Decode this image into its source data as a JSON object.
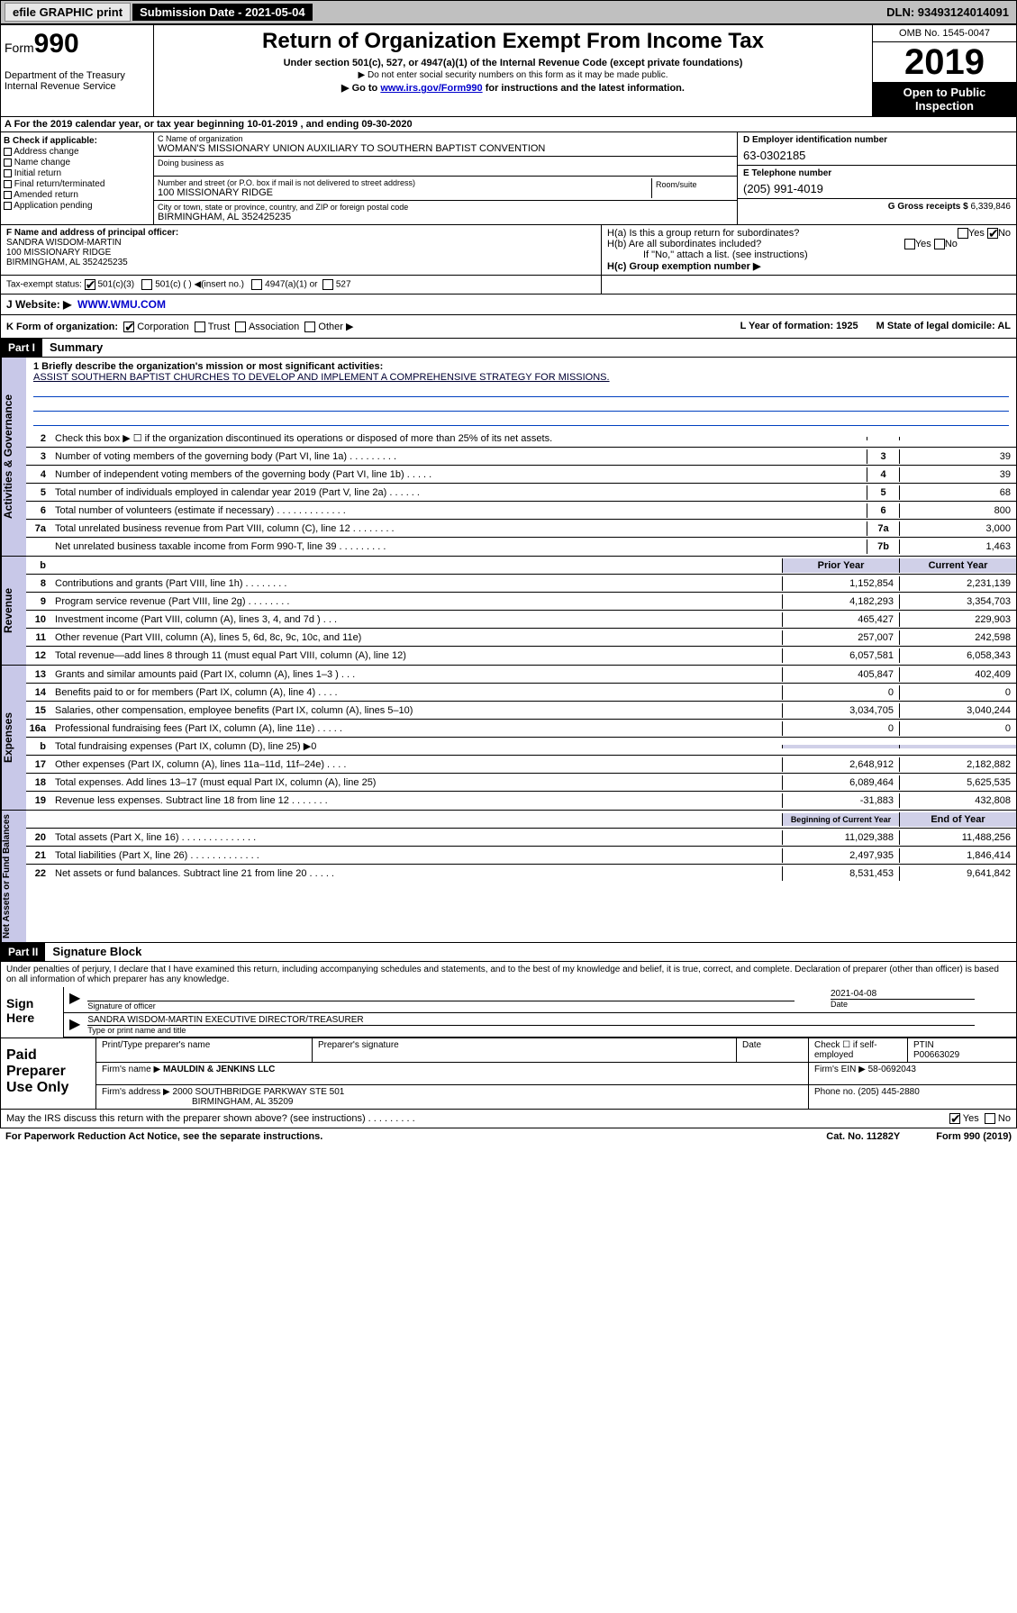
{
  "topbar": {
    "efile": "efile GRAPHIC print",
    "submission": "Submission Date - 2021-05-04",
    "dln": "DLN: 93493124014091"
  },
  "header": {
    "form": "Form",
    "formnum": "990",
    "dept": "Department of the Treasury Internal Revenue Service",
    "title": "Return of Organization Exempt From Income Tax",
    "sub1": "Under section 501(c), 527, or 4947(a)(1) of the Internal Revenue Code (except private foundations)",
    "sub2": "▶ Do not enter social security numbers on this form as it may be made public.",
    "sub3_pre": "▶ Go to ",
    "sub3_link": "www.irs.gov/Form990",
    "sub3_post": " for instructions and the latest information.",
    "omb": "OMB No. 1545-0047",
    "year": "2019",
    "open": "Open to Public Inspection"
  },
  "lineA": "A For the 2019 calendar year, or tax year beginning 10-01-2019     , and ending 09-30-2020",
  "checkboxes": {
    "hdr": "B Check if applicable:",
    "items": [
      "Address change",
      "Name change",
      "Initial return",
      "Final return/terminated",
      "Amended return",
      "Application pending"
    ]
  },
  "org": {
    "name_lbl": "C Name of organization",
    "name": "WOMAN'S MISSIONARY UNION AUXILIARY TO SOUTHERN BAPTIST CONVENTION",
    "dba_lbl": "Doing business as",
    "dba": "",
    "addr_lbl": "Number and street (or P.O. box if mail is not delivered to street address)",
    "addr": "100 MISSIONARY RIDGE",
    "room_lbl": "Room/suite",
    "city_lbl": "City or town, state or province, country, and ZIP or foreign postal code",
    "city": "BIRMINGHAM, AL  352425235"
  },
  "right": {
    "ein_lbl": "D Employer identification number",
    "ein": "63-0302185",
    "tel_lbl": "E Telephone number",
    "tel": "(205) 991-4019",
    "gross_lbl": "G Gross receipts $ ",
    "gross": "6,339,846"
  },
  "officer": {
    "lbl": "F Name and address of principal officer:",
    "name": "SANDRA WISDOM-MARTIN",
    "addr1": "100 MISSIONARY RIDGE",
    "addr2": "BIRMINGHAM, AL  352425235"
  },
  "h": {
    "ha": "H(a)  Is this a group return for subordinates?",
    "hb": "H(b)  Are all subordinates included?",
    "hb2": "If \"No,\" attach a list. (see instructions)",
    "hc": "H(c)  Group exemption number ▶"
  },
  "tax": {
    "lbl": "Tax-exempt status:",
    "c3": "501(c)(3)",
    "c": "501(c) (  ) ◀(insert no.)",
    "a1": "4947(a)(1) or",
    "s527": "527"
  },
  "website": {
    "lbl": "J Website: ▶",
    "val": "WWW.WMU.COM"
  },
  "rowk": {
    "k": "K Form of organization:",
    "corp": "Corporation",
    "trust": "Trust",
    "assoc": "Association",
    "other": "Other ▶",
    "l": "L Year of formation: 1925",
    "m": "M State of legal domicile: AL"
  },
  "part1": {
    "hdr": "Part I",
    "title": "Summary"
  },
  "mission": {
    "lbl": "1  Briefly describe the organization's mission or most significant activities:",
    "txt": "ASSIST SOUTHERN BAPTIST CHURCHES TO DEVELOP AND IMPLEMENT A COMPREHENSIVE STRATEGY FOR MISSIONS."
  },
  "gov_rows": [
    {
      "n": "2",
      "t": "Check this box ▶ ☐  if the organization discontinued its operations or disposed of more than 25% of its net assets.",
      "b": "",
      "v": ""
    },
    {
      "n": "3",
      "t": "Number of voting members of the governing body (Part VI, line 1a)  .    .    .    .    .    .    .    .    .",
      "b": "3",
      "v": "39"
    },
    {
      "n": "4",
      "t": "Number of independent voting members of the governing body (Part VI, line 1b)  .    .    .    .    .",
      "b": "4",
      "v": "39"
    },
    {
      "n": "5",
      "t": "Total number of individuals employed in calendar year 2019 (Part V, line 2a)  .    .    .    .    .    .",
      "b": "5",
      "v": "68"
    },
    {
      "n": "6",
      "t": "Total number of volunteers (estimate if necessary)  .    .    .    .    .    .    .    .    .    .    .    .    .",
      "b": "6",
      "v": "800"
    },
    {
      "n": "7a",
      "t": "Total unrelated business revenue from Part VIII, column (C), line 12  .    .    .    .    .    .    .    .",
      "b": "7a",
      "v": "3,000"
    },
    {
      "n": "",
      "t": "Net unrelated business taxable income from Form 990-T, line 39  .    .    .    .    .    .    .    .    .",
      "b": "7b",
      "v": "1,463"
    }
  ],
  "rev_hdr": {
    "p": "Prior Year",
    "c": "Current Year"
  },
  "rev_rows": [
    {
      "n": "8",
      "t": "Contributions and grants (Part VIII, line 1h)  .    .    .    .    .    .    .    .",
      "p": "1,152,854",
      "c": "2,231,139"
    },
    {
      "n": "9",
      "t": "Program service revenue (Part VIII, line 2g)  .    .    .    .    .    .    .    .",
      "p": "4,182,293",
      "c": "3,354,703"
    },
    {
      "n": "10",
      "t": "Investment income (Part VIII, column (A), lines 3, 4, and 7d )  .    .    .",
      "p": "465,427",
      "c": "229,903"
    },
    {
      "n": "11",
      "t": "Other revenue (Part VIII, column (A), lines 5, 6d, 8c, 9c, 10c, and 11e)",
      "p": "257,007",
      "c": "242,598"
    },
    {
      "n": "12",
      "t": "Total revenue—add lines 8 through 11 (must equal Part VIII, column (A), line 12)",
      "p": "6,057,581",
      "c": "6,058,343"
    }
  ],
  "exp_rows": [
    {
      "n": "13",
      "t": "Grants and similar amounts paid (Part IX, column (A), lines 1–3 )  .    .    .",
      "p": "405,847",
      "c": "402,409"
    },
    {
      "n": "14",
      "t": "Benefits paid to or for members (Part IX, column (A), line 4)  .    .    .    .",
      "p": "0",
      "c": "0"
    },
    {
      "n": "15",
      "t": "Salaries, other compensation, employee benefits (Part IX, column (A), lines 5–10)",
      "p": "3,034,705",
      "c": "3,040,244"
    },
    {
      "n": "16a",
      "t": "Professional fundraising fees (Part IX, column (A), line 11e)  .    .    .    .    .",
      "p": "0",
      "c": "0"
    },
    {
      "n": "b",
      "t": "Total fundraising expenses (Part IX, column (D), line 25) ▶0",
      "p": "",
      "c": "",
      "shade": true
    },
    {
      "n": "17",
      "t": "Other expenses (Part IX, column (A), lines 11a–11d, 11f–24e)  .    .    .    .",
      "p": "2,648,912",
      "c": "2,182,882"
    },
    {
      "n": "18",
      "t": "Total expenses. Add lines 13–17 (must equal Part IX, column (A), line 25)",
      "p": "6,089,464",
      "c": "5,625,535"
    },
    {
      "n": "19",
      "t": "Revenue less expenses. Subtract line 18 from line 12  .    .    .    .    .    .    .",
      "p": "-31,883",
      "c": "432,808"
    }
  ],
  "net_hdr": {
    "p": "Beginning of Current Year",
    "c": "End of Year"
  },
  "net_rows": [
    {
      "n": "20",
      "t": "Total assets (Part X, line 16)  .    .    .    .    .    .    .    .    .    .    .    .    .    .",
      "p": "11,029,388",
      "c": "11,488,256"
    },
    {
      "n": "21",
      "t": "Total liabilities (Part X, line 26)  .    .    .    .    .    .    .    .    .    .    .    .    .",
      "p": "2,497,935",
      "c": "1,846,414"
    },
    {
      "n": "22",
      "t": "Net assets or fund balances. Subtract line 21 from line 20  .    .    .    .    .",
      "p": "8,531,453",
      "c": "9,641,842"
    }
  ],
  "part2": {
    "hdr": "Part II",
    "title": "Signature Block"
  },
  "sig": {
    "decl": "Under penalties of perjury, I declare that I have examined this return, including accompanying schedules and statements, and to the best of my knowledge and belief, it is true, correct, and complete. Declaration of preparer (other than officer) is based on all information of which preparer has any knowledge.",
    "sign": "Sign Here",
    "sig_lbl": "Signature of officer",
    "date": "2021-04-08",
    "date_lbl": "Date",
    "name": "SANDRA WISDOM-MARTIN  EXECUTIVE DIRECTOR/TREASURER",
    "name_lbl": "Type or print name and title"
  },
  "paid": {
    "hdr": "Paid Preparer Use Only",
    "r1": {
      "a": "Print/Type preparer's name",
      "b": "Preparer's signature",
      "c": "Date",
      "d": "Check ☐ if self-employed",
      "e": "PTIN",
      "ev": "P00663029"
    },
    "r2": {
      "a": "Firm's name      ▶",
      "av": "MAULDIN & JENKINS LLC",
      "b": "Firm's EIN ▶",
      "bv": "58-0692043"
    },
    "r3": {
      "a": "Firm's address ▶",
      "av": "2000 SOUTHBRIDGE PARKWAY STE 501",
      "av2": "BIRMINGHAM, AL  35209",
      "b": "Phone no.",
      "bv": "(205) 445-2880"
    }
  },
  "discuss": "May the IRS discuss this return with the preparer shown above? (see instructions)   .    .    .    .    .    .    .    .    .",
  "footer": {
    "a": "For Paperwork Reduction Act Notice, see the separate instructions.",
    "b": "Cat. No. 11282Y",
    "c": "Form 990 (2019)"
  },
  "vtabs": {
    "gov": "Activities & Governance",
    "rev": "Revenue",
    "exp": "Expenses",
    "net": "Net Assets or Fund Balances"
  }
}
